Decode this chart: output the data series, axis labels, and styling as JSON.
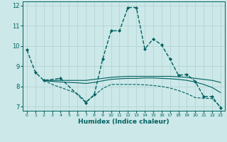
{
  "xlabel": "Humidex (Indice chaleur)",
  "xlim": [
    -0.5,
    23.5
  ],
  "ylim": [
    6.8,
    12.2
  ],
  "background_color": "#cce8e8",
  "grid_color": "#b0d0d0",
  "line_color": "#006060",
  "yticks": [
    7,
    8,
    9,
    10,
    11,
    12
  ],
  "xticks": [
    0,
    1,
    2,
    3,
    4,
    5,
    6,
    7,
    8,
    9,
    10,
    11,
    12,
    13,
    14,
    15,
    16,
    17,
    18,
    19,
    20,
    21,
    22,
    23
  ],
  "lines": [
    {
      "x": [
        0,
        1,
        2,
        4,
        7,
        8,
        9,
        10,
        11,
        12,
        13,
        14,
        15,
        16,
        17,
        18,
        19,
        20,
        21,
        22,
        23
      ],
      "y": [
        9.8,
        8.7,
        8.3,
        8.4,
        7.2,
        7.6,
        9.35,
        10.75,
        10.75,
        11.9,
        11.9,
        9.85,
        10.35,
        10.05,
        9.35,
        8.55,
        8.6,
        8.25,
        7.5,
        7.5,
        6.95
      ],
      "style": "--",
      "marker": "D",
      "markersize": 2.0,
      "linewidth": 1.0
    },
    {
      "x": [
        2,
        3,
        4,
        5,
        6,
        7,
        8,
        9,
        10,
        11,
        12,
        13,
        14,
        15,
        16,
        17,
        18,
        19,
        20,
        21,
        22,
        23
      ],
      "y": [
        8.3,
        8.3,
        8.3,
        8.3,
        8.3,
        8.3,
        8.35,
        8.4,
        8.45,
        8.48,
        8.5,
        8.5,
        8.5,
        8.5,
        8.5,
        8.5,
        8.48,
        8.45,
        8.4,
        8.35,
        8.3,
        8.2
      ],
      "style": "-",
      "marker": "",
      "markersize": 0,
      "linewidth": 0.8
    },
    {
      "x": [
        2,
        3,
        4,
        5,
        6,
        7,
        8,
        9,
        10,
        11,
        12,
        13,
        14,
        15,
        16,
        17,
        18,
        19,
        20,
        21,
        22,
        23
      ],
      "y": [
        8.28,
        8.25,
        8.22,
        8.2,
        8.18,
        8.15,
        8.2,
        8.28,
        8.35,
        8.38,
        8.4,
        8.4,
        8.42,
        8.42,
        8.4,
        8.38,
        8.35,
        8.3,
        8.22,
        8.1,
        7.95,
        7.7
      ],
      "style": "-",
      "marker": "",
      "markersize": 0,
      "linewidth": 0.8
    },
    {
      "x": [
        2,
        3,
        4,
        5,
        6,
        7,
        8,
        9,
        10,
        11,
        12,
        13,
        14,
        15,
        16,
        17,
        18,
        19,
        20,
        21,
        22,
        23
      ],
      "y": [
        8.3,
        8.1,
        7.95,
        7.8,
        7.65,
        7.25,
        7.55,
        7.9,
        8.1,
        8.1,
        8.1,
        8.1,
        8.08,
        8.05,
        8.0,
        7.92,
        7.8,
        7.65,
        7.45,
        7.42,
        7.4,
        7.0
      ],
      "style": "--",
      "marker": "",
      "markersize": 0,
      "linewidth": 0.8
    }
  ]
}
